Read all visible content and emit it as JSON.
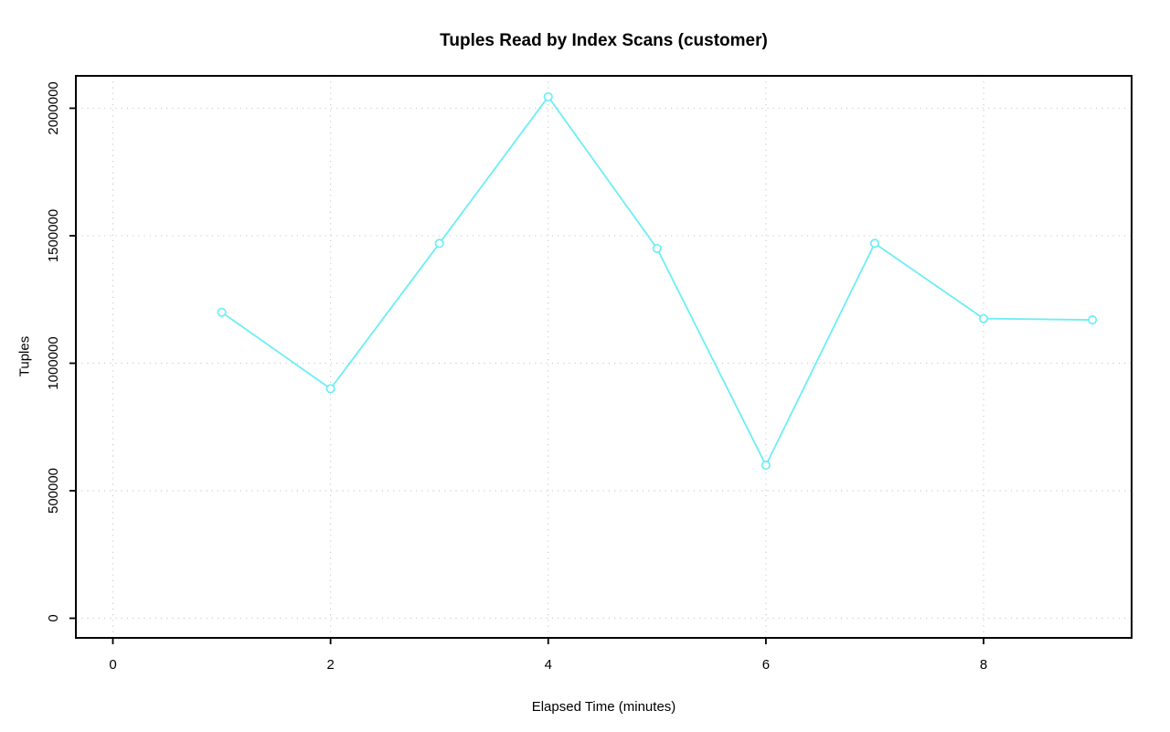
{
  "chart_data": {
    "type": "line",
    "title": "Tuples Read by Index Scans (customer)",
    "xlabel": "Elapsed Time (minutes)",
    "ylabel": "Tuples",
    "x": [
      1,
      2,
      3,
      4,
      5,
      6,
      7,
      8,
      9
    ],
    "values": [
      1200000,
      900000,
      1470000,
      2045000,
      1450000,
      600000,
      1470000,
      1175000,
      1170000
    ],
    "x_ticks": [
      0,
      2,
      4,
      6,
      8
    ],
    "y_ticks": [
      0,
      500000,
      1000000,
      1500000,
      2000000
    ],
    "xlim": [
      -0.34,
      9.36
    ],
    "ylim": [
      -77000,
      2127000
    ],
    "grid": true,
    "marker": "open-circle",
    "colors": {
      "line": "#6ceef5",
      "marker_fill": "#ffffff",
      "grid": "#cccccc",
      "axis": "#000000",
      "background": "#ffffff"
    }
  }
}
